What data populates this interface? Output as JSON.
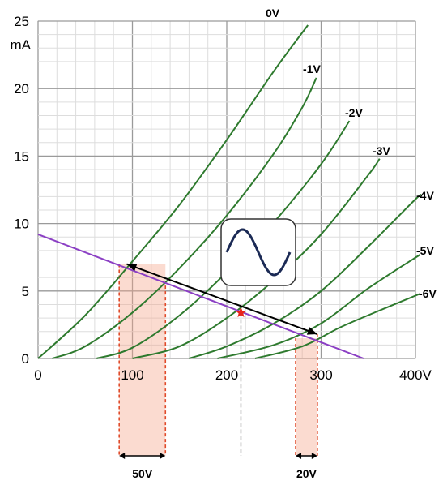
{
  "chart_data": {
    "type": "line",
    "xlim": [
      0,
      400
    ],
    "ylim": [
      0,
      25
    ],
    "grid": true,
    "y_unit": "mA",
    "x_ticks": [
      "0",
      "100",
      "200",
      "300",
      "400V"
    ],
    "y_ticks": [
      "0",
      "5",
      "10",
      "15",
      "20",
      "25"
    ],
    "series": [
      {
        "name": "0V",
        "color": "#2e7a2e",
        "x": [
          0,
          50,
          100,
          150,
          200,
          250,
          286
        ],
        "y": [
          0,
          3.2,
          7.2,
          11.4,
          16.2,
          21.3,
          24.7
        ]
      },
      {
        "name": "-1V",
        "color": "#2e7a2e",
        "x": [
          15,
          50,
          100,
          150,
          200,
          250,
          280,
          295
        ],
        "y": [
          0,
          0.9,
          3.4,
          6.7,
          10.6,
          15.2,
          18.6,
          20.8
        ]
      },
      {
        "name": "-2V",
        "color": "#2e7a2e",
        "x": [
          62,
          100,
          150,
          200,
          250,
          300,
          330
        ],
        "y": [
          0,
          0.8,
          3.2,
          6.4,
          10.1,
          14.4,
          17.6
        ]
      },
      {
        "name": "-3V",
        "color": "#2e7a2e",
        "x": [
          100,
          150,
          200,
          250,
          300,
          350,
          362
        ],
        "y": [
          0,
          0.9,
          3.0,
          5.8,
          9.2,
          13.6,
          14.8
        ]
      },
      {
        "name": "-4V",
        "color": "#2e7a2e",
        "x": [
          160,
          200,
          250,
          300,
          350,
          400,
          405
        ],
        "y": [
          0,
          0.9,
          2.6,
          5.0,
          8.3,
          11.8,
          12.0
        ]
      },
      {
        "name": "-5V",
        "color": "#2e7a2e",
        "x": [
          190,
          250,
          300,
          350,
          405
        ],
        "y": [
          0,
          1.0,
          2.6,
          5.2,
          7.7
        ]
      },
      {
        "name": "-6V",
        "color": "#2e7a2e",
        "x": [
          230,
          280,
          320,
          360,
          405
        ],
        "y": [
          0,
          0.9,
          2.3,
          3.5,
          4.8
        ]
      }
    ],
    "load_line": {
      "color": "#8b3fc4",
      "x": [
        0,
        345
      ],
      "y": [
        9.2,
        0
      ]
    },
    "operating_point": {
      "x": 215,
      "y": 3.4,
      "color": "#e8231a"
    },
    "swing_arrow": {
      "from": [
        94,
        7.0
      ],
      "to": [
        296,
        1.8
      ],
      "color": "#000000"
    },
    "input_swing": [
      {
        "v_from": 86,
        "v_to": 135,
        "label": "50V"
      },
      {
        "v_from": 273,
        "v_to": 296,
        "label": "20V"
      }
    ],
    "swing_color": "#f4a58a",
    "swing_line_color": "#e04a2a"
  },
  "inset": {
    "name": "sine-wave-icon"
  }
}
